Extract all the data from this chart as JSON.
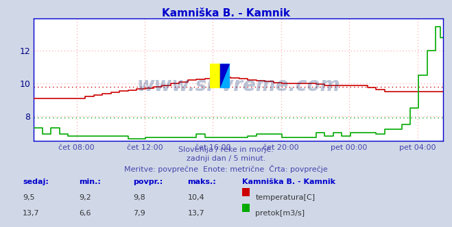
{
  "title": "Kamniška B. - Kamnik",
  "title_color": "#0000cc",
  "bg_color": "#d0d8e8",
  "plot_bg_color": "#ffffff",
  "grid_color": "#ff9999",
  "grid_color2": "#99ff99",
  "x_label_color": "#4444aa",
  "y_label_color": "#000080",
  "watermark": "www.si-vreme.com",
  "watermark_color": "#1a3a7a",
  "subtitle1": "Slovenija / reke in morje.",
  "subtitle2": "zadnji dan / 5 minut.",
  "subtitle3": "Meritve: povprečne  Enote: metrične  Črta: povprečje",
  "subtitle_color": "#4444aa",
  "footer_header": [
    "sedaj:",
    "min.:",
    "povpr.:",
    "maks.:",
    "Kamniška B. - Kamnik"
  ],
  "footer_row1": [
    "9,5",
    "9,2",
    "9,8",
    "10,4"
  ],
  "footer_row2": [
    "13,7",
    "6,6",
    "7,9",
    "13,7"
  ],
  "footer_color": "#0000cc",
  "footer_label1": "temperatura[C]",
  "footer_label2": "pretok[m3/s]",
  "temp_color": "#cc0000",
  "flow_color": "#00aa00",
  "temp_avg": 9.8,
  "flow_avg": 7.9,
  "ylim": [
    6.5,
    14.0
  ],
  "yticks": [
    8,
    10,
    12
  ],
  "xtick_labels": [
    "čet 08:00",
    "čet 12:00",
    "čet 16:00",
    "čet 20:00",
    "pet 00:00",
    "pet 04:00"
  ],
  "axis_color": "#0000cc",
  "spine_color": "#0000cc",
  "logo_colors": [
    "#ffff00",
    "#00aaff",
    "#0000cc"
  ]
}
